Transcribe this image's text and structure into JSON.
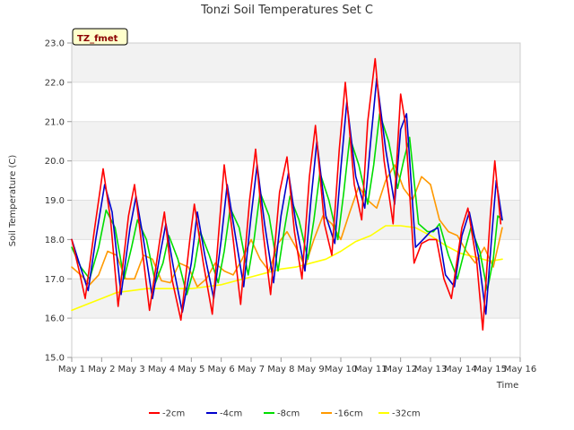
{
  "chart_data": {
    "type": "line",
    "title": "Tonzi Soil Temperatures Set C",
    "xlabel": "Time",
    "ylabel": "Soil Temperature (C)",
    "tag": "TZ_fmet",
    "ylim": [
      15.0,
      23.0
    ],
    "xlim": [
      1,
      16
    ],
    "y_ticks": [
      "15.0",
      "16.0",
      "17.0",
      "18.0",
      "19.0",
      "20.0",
      "21.0",
      "22.0",
      "23.0"
    ],
    "x_ticks": [
      "May 1",
      "May 2",
      "May 3",
      "May 4",
      "May 5",
      "May 6",
      "May 7",
      "May 8",
      "May 9",
      "May 10",
      "May 11",
      "May 12",
      "May 13",
      "May 14",
      "May 15",
      "May 16"
    ],
    "grid": "horizontal-bands",
    "legend_position": "bottom",
    "series": [
      {
        "name": "-2cm",
        "color": "#ff0000",
        "x": [
          1.0,
          1.25,
          1.45,
          1.75,
          2.05,
          2.3,
          2.55,
          2.9,
          3.1,
          3.35,
          3.6,
          3.95,
          4.1,
          4.35,
          4.65,
          4.95,
          5.1,
          5.4,
          5.7,
          5.95,
          6.1,
          6.4,
          6.65,
          6.95,
          7.15,
          7.4,
          7.65,
          7.95,
          8.2,
          8.45,
          8.7,
          8.95,
          9.15,
          9.45,
          9.7,
          9.95,
          10.15,
          10.45,
          10.7,
          10.9,
          11.15,
          11.45,
          11.75,
          12.0,
          12.15,
          12.45,
          12.7,
          12.95,
          13.2,
          13.45,
          13.7,
          14.05,
          14.25,
          14.55,
          14.75,
          15.0,
          15.15,
          15.35
        ],
        "y": [
          18.0,
          17.2,
          16.5,
          18.2,
          19.8,
          18.5,
          16.3,
          18.6,
          19.4,
          17.8,
          16.2,
          18.0,
          18.7,
          17.0,
          15.95,
          18.0,
          18.9,
          17.4,
          16.1,
          18.5,
          19.9,
          18.0,
          16.35,
          19.0,
          20.3,
          18.2,
          16.6,
          19.2,
          20.1,
          18.2,
          17.0,
          19.6,
          20.9,
          18.4,
          17.6,
          20.3,
          22.0,
          19.4,
          18.5,
          21.0,
          22.6,
          20.0,
          18.4,
          21.7,
          21.0,
          17.4,
          17.9,
          18.0,
          18.0,
          17.0,
          16.5,
          18.3,
          18.8,
          17.4,
          15.7,
          18.6,
          20.0,
          18.4
        ]
      },
      {
        "name": "-4cm",
        "color": "#0000cc",
        "x": [
          1.0,
          1.25,
          1.55,
          1.8,
          2.1,
          2.35,
          2.65,
          2.95,
          3.15,
          3.4,
          3.7,
          3.95,
          4.15,
          4.4,
          4.7,
          5.0,
          5.2,
          5.45,
          5.75,
          6.0,
          6.2,
          6.45,
          6.75,
          7.0,
          7.2,
          7.45,
          7.75,
          8.0,
          8.25,
          8.5,
          8.8,
          9.0,
          9.2,
          9.5,
          9.8,
          10.0,
          10.2,
          10.5,
          10.8,
          11.0,
          11.2,
          11.5,
          11.8,
          12.0,
          12.2,
          12.5,
          12.75,
          13.0,
          13.25,
          13.5,
          13.8,
          14.05,
          14.3,
          14.6,
          14.85,
          15.05,
          15.2,
          15.4
        ],
        "y": [
          18.0,
          17.4,
          16.7,
          18.0,
          19.4,
          18.7,
          16.6,
          18.3,
          19.1,
          18.0,
          16.5,
          17.6,
          18.4,
          17.3,
          16.15,
          17.4,
          18.7,
          17.6,
          16.5,
          18.0,
          19.4,
          18.2,
          16.8,
          18.6,
          19.9,
          18.4,
          16.9,
          18.6,
          19.7,
          18.4,
          17.2,
          19.0,
          20.5,
          18.6,
          17.9,
          19.8,
          21.5,
          19.6,
          18.8,
          20.5,
          22.1,
          20.3,
          18.9,
          20.8,
          21.2,
          17.8,
          18.0,
          18.2,
          18.3,
          17.1,
          16.8,
          18.1,
          18.7,
          17.6,
          16.1,
          18.1,
          19.5,
          18.5
        ]
      },
      {
        "name": "-8cm",
        "color": "#00dd00",
        "x": [
          1.0,
          1.3,
          1.6,
          1.9,
          2.15,
          2.45,
          2.75,
          3.0,
          3.2,
          3.5,
          3.8,
          4.05,
          4.25,
          4.55,
          4.85,
          5.1,
          5.3,
          5.6,
          5.9,
          6.1,
          6.3,
          6.6,
          6.9,
          7.1,
          7.3,
          7.6,
          7.9,
          8.1,
          8.3,
          8.6,
          8.9,
          9.1,
          9.3,
          9.6,
          9.9,
          10.1,
          10.3,
          10.6,
          10.9,
          11.1,
          11.3,
          11.6,
          11.9,
          12.1,
          12.3,
          12.6,
          12.9,
          13.1,
          13.3,
          13.6,
          13.9,
          14.1,
          14.35,
          14.65,
          14.9,
          15.1,
          15.25,
          15.4
        ],
        "y": [
          17.8,
          17.3,
          17.0,
          17.8,
          18.75,
          18.3,
          17.0,
          17.8,
          18.5,
          18.0,
          16.9,
          17.4,
          18.1,
          17.5,
          16.6,
          17.3,
          18.2,
          17.6,
          16.9,
          17.7,
          18.8,
          18.3,
          17.1,
          18.0,
          19.2,
          18.6,
          17.2,
          18.2,
          19.1,
          18.5,
          17.5,
          18.5,
          19.7,
          19.0,
          18.0,
          19.2,
          20.6,
          19.9,
          18.9,
          19.9,
          21.2,
          20.5,
          19.3,
          20.0,
          20.6,
          18.4,
          18.2,
          18.2,
          18.4,
          17.6,
          17.0,
          17.6,
          18.3,
          17.7,
          16.7,
          17.5,
          18.6,
          18.5
        ]
      },
      {
        "name": "-16cm",
        "color": "#ff9900",
        "x": [
          1.0,
          1.3,
          1.6,
          1.9,
          2.2,
          2.5,
          2.8,
          3.1,
          3.4,
          3.7,
          4.0,
          4.3,
          4.6,
          4.9,
          5.2,
          5.5,
          5.8,
          6.1,
          6.4,
          6.7,
          7.0,
          7.3,
          7.6,
          7.9,
          8.2,
          8.5,
          8.8,
          9.1,
          9.4,
          9.7,
          10.0,
          10.3,
          10.6,
          10.9,
          11.2,
          11.5,
          11.8,
          12.1,
          12.4,
          12.7,
          13.0,
          13.3,
          13.6,
          13.9,
          14.2,
          14.5,
          14.8,
          15.1,
          15.4
        ],
        "y": [
          17.3,
          17.1,
          16.85,
          17.1,
          17.7,
          17.6,
          17.0,
          17.0,
          17.6,
          17.5,
          16.95,
          16.9,
          17.4,
          17.3,
          16.8,
          17.0,
          17.4,
          17.2,
          17.1,
          17.5,
          18.0,
          17.5,
          17.2,
          17.9,
          18.2,
          17.8,
          17.3,
          18.0,
          18.6,
          18.4,
          18.0,
          18.7,
          19.35,
          19.0,
          18.8,
          19.5,
          19.9,
          19.3,
          19.0,
          19.6,
          19.4,
          18.5,
          18.2,
          18.1,
          17.7,
          17.4,
          17.8,
          17.3,
          18.3
        ]
      },
      {
        "name": "-32cm",
        "color": "#ffff00",
        "x": [
          1.0,
          1.5,
          2.0,
          2.5,
          3.0,
          3.5,
          4.0,
          4.5,
          5.0,
          5.5,
          6.0,
          6.5,
          7.0,
          7.5,
          8.0,
          8.5,
          9.0,
          9.5,
          10.0,
          10.5,
          11.0,
          11.5,
          12.0,
          12.5,
          13.0,
          13.5,
          14.0,
          14.5,
          15.0,
          15.4
        ],
        "y": [
          16.2,
          16.35,
          16.5,
          16.65,
          16.7,
          16.75,
          16.75,
          16.75,
          16.75,
          16.8,
          16.85,
          16.95,
          17.05,
          17.15,
          17.25,
          17.3,
          17.4,
          17.5,
          17.7,
          17.95,
          18.1,
          18.35,
          18.35,
          18.3,
          18.1,
          17.85,
          17.65,
          17.55,
          17.45,
          17.5
        ]
      }
    ]
  }
}
